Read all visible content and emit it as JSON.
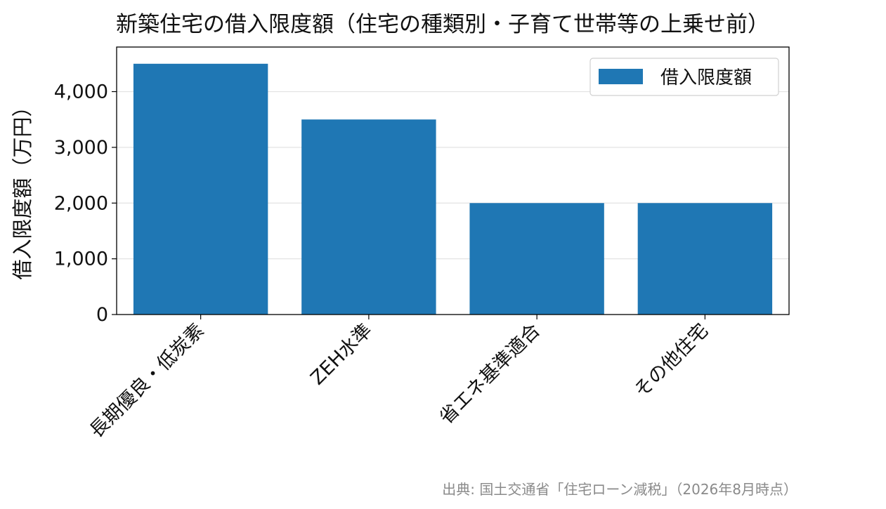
{
  "chart_data": {
    "type": "bar",
    "title": "新築住宅の借入限度額（住宅の種類別・子育て世帯等の上乗せ前）",
    "xlabel": "",
    "ylabel": "借入限度額（万円）",
    "categories": [
      "長期優良・低炭素",
      "ZEH水準",
      "省エネ基準適合",
      "その他住宅"
    ],
    "series": [
      {
        "name": "借入限度額",
        "values": [
          4500,
          3500,
          2000,
          2000
        ],
        "color": "#1f77b4"
      }
    ],
    "ylim": [
      0,
      4800
    ],
    "yticks": [
      0,
      1000,
      2000,
      3000,
      4000
    ],
    "ytick_labels": [
      "0",
      "1,000",
      "2,000",
      "3,000",
      "4,000"
    ],
    "grid": true,
    "legend_position": "top-right",
    "source": "出典: 国土交通省「住宅ローン減税」（2026年8月時点）"
  }
}
